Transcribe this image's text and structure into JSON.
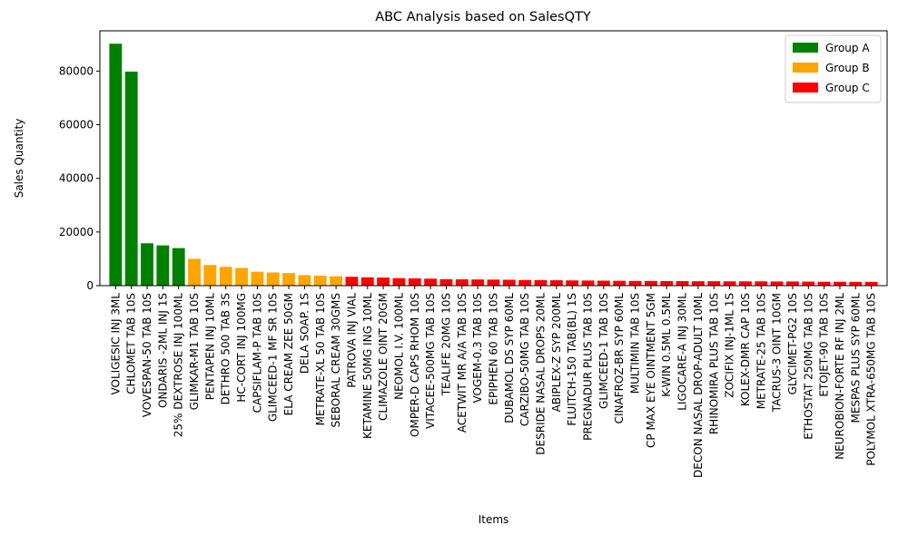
{
  "chart_data": {
    "type": "bar",
    "title": "ABC Analysis based on SalesQTY",
    "xlabel": "Items",
    "ylabel": "Sales Quantity",
    "ylim": [
      0,
      95000
    ],
    "yticks": [
      0,
      20000,
      40000,
      60000,
      80000
    ],
    "grid": false,
    "legend_position": "top-right",
    "groups": [
      {
        "name": "Group A",
        "color": "#008000"
      },
      {
        "name": "Group B",
        "color": "#ffa500"
      },
      {
        "name": "Group C",
        "color": "#ff0000"
      }
    ],
    "categories": [
      "VOLIGESIC INJ 3ML",
      "CHLOMET TAB 10S",
      "VOVESPAN-50 TAB 10S",
      "ONDARIS -2ML INJ 1S",
      "25% DEXTROSE INJ 100ML",
      "GLIMKAR-M1 TAB 10S",
      "PENTAPEN INJ 10ML",
      "DETHRO 500 TAB 3S",
      "HC-CORT INJ 100MG",
      "CAPSIFLAM-P TAB 10S",
      "GLIMCEED-1 MF SR 10S",
      "ELA CREAM ZEE 50GM",
      "DELA SOAP. 1S",
      "METRATE-XL 50 TAB 10S",
      "SEBORAL CREAM 30GMS",
      "PATROVA INJ VIAL",
      "KETAMINE 50MG ING 10ML",
      "CLIMAZOLE OINT 20GM",
      "NEOMOL I.V. 100ML",
      "OMPER-D CAPS RHOM 10S",
      "VITACEE-500MG TAB 10S",
      "TEALIFE 20MG 10S",
      "ACETWIT MR A/A TAB 10S",
      "VOGEM-0.3 TAB 10S",
      "EPIPHEN 60 TAB 10S",
      "DUBAMOL DS SYP 60ML",
      "CARZIBO-50MG TAB 10S",
      "DESRIDE NASAL DROPS 20ML",
      "ABIPLEX-Z SYP 200ML",
      "FLUITCH-150 TAB(BL) 1S",
      "PREGNADUR PLUS TAB 10S",
      "GLIMCEED-1 TAB 10S",
      "CINAFROZ-BR SYP 60ML",
      "MULTIMIN TAB 10S",
      "CP MAX EYE OINTMENT 5GM",
      "K-WIN 0.5ML 0.5ML",
      "LIGOCARE-A INJ 30ML",
      "DECON NASAL DROP-ADULT 10ML",
      "RHINOMIRA PLUS TAB 10S",
      "ZOCIFIX INJ-1ML 1S",
      "KOLEX-DMR CAP 10S",
      "METRATE-25 TAB 10S",
      "TACRUS-3 OINT 10GM",
      "GLYCIMET-PG2 10S",
      "ETHOSTAT 250MG TAB 10S",
      "ETOJET-90 TAB 10S",
      "NEUROBION-FORTE RF INJ 2ML",
      "MESPAS PLUS SYP 60ML",
      "POLYMOL XTRA-650MG TAB 10S"
    ],
    "values": [
      90200,
      79800,
      15800,
      15000,
      14000,
      10000,
      7700,
      7000,
      6600,
      5200,
      4900,
      4700,
      3900,
      3700,
      3500,
      3300,
      3100,
      3000,
      2800,
      2700,
      2600,
      2400,
      2350,
      2300,
      2250,
      2200,
      2100,
      2050,
      2000,
      1950,
      1900,
      1850,
      1800,
      1750,
      1750,
      1700,
      1700,
      1650,
      1650,
      1600,
      1600,
      1600,
      1550,
      1550,
      1500,
      1450,
      1450,
      1400,
      1400
    ],
    "group_index": [
      0,
      0,
      0,
      0,
      0,
      1,
      1,
      1,
      1,
      1,
      1,
      1,
      1,
      1,
      1,
      2,
      2,
      2,
      2,
      2,
      2,
      2,
      2,
      2,
      2,
      2,
      2,
      2,
      2,
      2,
      2,
      2,
      2,
      2,
      2,
      2,
      2,
      2,
      2,
      2,
      2,
      2,
      2,
      2,
      2,
      2,
      2,
      2,
      2
    ]
  }
}
